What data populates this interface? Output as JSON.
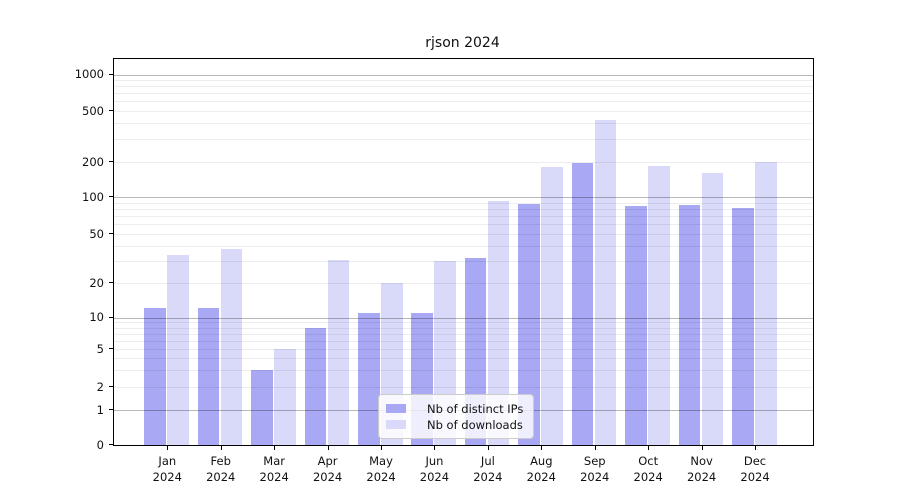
{
  "chart_data": {
    "type": "bar",
    "title": "rjson 2024",
    "categories": [
      "Jan",
      "Feb",
      "Mar",
      "Apr",
      "May",
      "Jun",
      "Jul",
      "Aug",
      "Sep",
      "Oct",
      "Nov",
      "Dec"
    ],
    "category_year": "2024",
    "series": [
      {
        "name": "Nb of distinct IPs",
        "color": "#a8a8f4",
        "values": [
          12,
          12,
          3,
          8,
          11,
          11,
          32,
          88,
          197,
          84,
          86,
          81
        ]
      },
      {
        "name": "Nb of downloads",
        "color": "#d9d9fa",
        "values": [
          34,
          38,
          5,
          31,
          20,
          30,
          92,
          183,
          425,
          185,
          160,
          200
        ]
      }
    ],
    "y_ticks": [
      0,
      1,
      2,
      5,
      10,
      20,
      50,
      100,
      200,
      500,
      1000
    ],
    "yscale": "log-like (0,1,2,5,10,20,50,100,200,500,1000)",
    "ylim": [
      0,
      1200
    ],
    "grid": true,
    "legend_position": "lower center"
  }
}
